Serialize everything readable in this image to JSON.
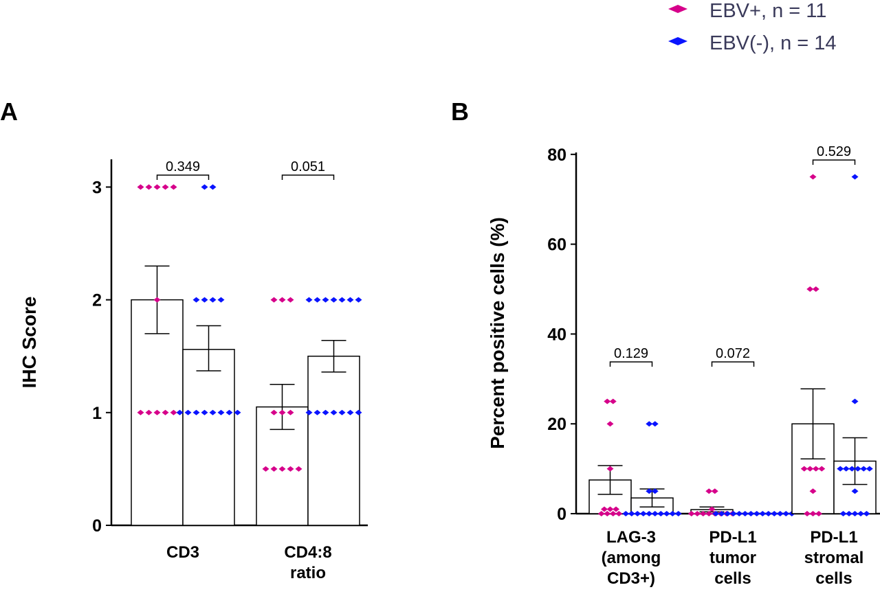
{
  "legend": {
    "placement": "top-right",
    "entries": [
      {
        "label": "EBV+, n = 11",
        "color": "#d6008a"
      },
      {
        "label": "EBV(-), n = 14",
        "color": "#0a14ff"
      }
    ]
  },
  "chart_data": [
    {
      "panel": "A",
      "type": "bar",
      "ylabel": "IHC Score",
      "ylim": [
        0,
        3.3
      ],
      "yticks": [
        "0",
        "1",
        "2",
        "3"
      ],
      "categories": [
        [
          "CD3"
        ],
        [
          "CD4:8",
          "ratio"
        ]
      ],
      "series": [
        {
          "name": "EBV+",
          "color": "#d6008a",
          "means": [
            2.0,
            1.05
          ],
          "se_low": [
            1.7,
            0.85
          ],
          "se_high": [
            2.3,
            1.25
          ],
          "points": [
            [
              3,
              3,
              3,
              3,
              3,
              2,
              1,
              1,
              1,
              1,
              1
            ],
            [
              2,
              2,
              2,
              1,
              1,
              1,
              0.5,
              0.5,
              0.5,
              0.5,
              0.5
            ]
          ]
        },
        {
          "name": "EBV(-)",
          "color": "#0a14ff",
          "means": [
            1.56,
            1.5
          ],
          "se_low": [
            1.37,
            1.36
          ],
          "se_high": [
            1.77,
            1.64
          ],
          "points": [
            [
              3,
              3,
              2,
              2,
              2,
              2,
              1,
              1,
              1,
              1,
              1,
              1,
              1,
              1
            ],
            [
              2,
              2,
              2,
              2,
              2,
              2,
              2,
              1,
              1,
              1,
              1,
              1,
              1,
              1
            ]
          ]
        }
      ],
      "pvalues": [
        "0.349",
        "0.051"
      ]
    },
    {
      "panel": "B",
      "type": "bar",
      "ylabel": "Percent positive cells (%)",
      "ylim": [
        0,
        82
      ],
      "yticks": [
        "0",
        "20",
        "40",
        "60",
        "80"
      ],
      "categories": [
        [
          "LAG-3",
          "(among",
          "CD3+)"
        ],
        [
          "PD-L1",
          "tumor",
          "cells"
        ],
        [
          "PD-L1",
          "stromal",
          "cells"
        ]
      ],
      "series": [
        {
          "name": "EBV+",
          "color": "#d6008a",
          "means": [
            7.5,
            0.9,
            20
          ],
          "se_low": [
            4.3,
            0.4,
            12.2
          ],
          "se_high": [
            10.7,
            1.5,
            27.8
          ],
          "points": [
            [
              25,
              25,
              20,
              10,
              1,
              1,
              1,
              0,
              0,
              0,
              0
            ],
            [
              5,
              5,
              1,
              0,
              0,
              0,
              0,
              0,
              0,
              0,
              0
            ],
            [
              75,
              50,
              50,
              10,
              10,
              10,
              10,
              5,
              0,
              0,
              0
            ]
          ]
        },
        {
          "name": "EBV(-)",
          "color": "#0a14ff",
          "means": [
            3.5,
            0,
            11.7
          ],
          "se_low": [
            1.5,
            0,
            6.5
          ],
          "se_high": [
            5.5,
            0,
            16.9
          ],
          "points": [
            [
              20,
              20,
              5,
              5,
              0,
              0,
              0,
              0,
              0,
              0,
              0,
              0,
              0,
              0
            ],
            [
              0,
              0,
              0,
              0,
              0,
              0,
              0,
              0,
              0,
              0,
              0,
              0,
              0,
              0
            ],
            [
              75,
              25,
              10,
              10,
              10,
              10,
              10,
              10,
              5,
              0,
              0,
              0,
              0,
              0
            ]
          ]
        }
      ],
      "pvalues": [
        "0.129",
        "0.072",
        "0.529"
      ]
    }
  ]
}
